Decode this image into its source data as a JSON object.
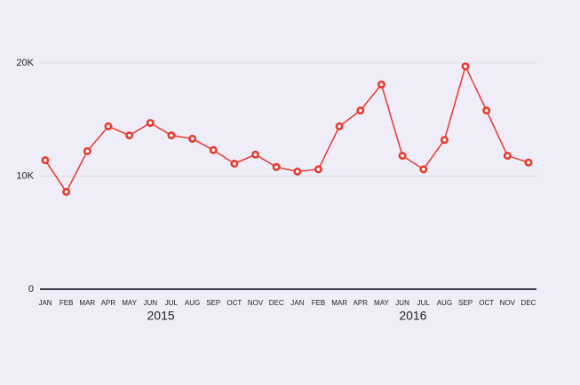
{
  "chart_data": {
    "type": "line",
    "categories": [
      "JAN",
      "FEB",
      "MAR",
      "APR",
      "MAY",
      "JUN",
      "JUL",
      "AUG",
      "SEP",
      "OCT",
      "NOV",
      "DEC",
      "JAN",
      "FEB",
      "MAR",
      "APR",
      "MAY",
      "JUN",
      "JUL",
      "AUG",
      "SEP",
      "OCT",
      "NOV",
      "DEC"
    ],
    "x_groups": [
      "2015",
      "2016"
    ],
    "values": [
      11400,
      8600,
      12200,
      14400,
      13600,
      14700,
      13600,
      13300,
      12300,
      11100,
      11900,
      10800,
      10400,
      10600,
      14400,
      15800,
      18100,
      11800,
      10600,
      13200,
      19700,
      15800,
      11800,
      11200
    ],
    "color": "#e8392c",
    "ylim": [
      0,
      20000
    ],
    "yticks": [
      0,
      {
        "value": 10000,
        "label": "10K"
      },
      {
        "value": 20000,
        "label": "20K"
      }
    ],
    "grid": true
  }
}
